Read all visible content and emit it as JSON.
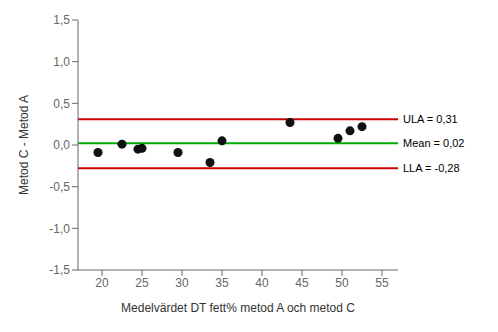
{
  "chart_data": {
    "type": "scatter",
    "x": [
      19.5,
      22.5,
      24.5,
      25.0,
      29.5,
      33.5,
      35.0,
      43.5,
      49.5,
      51.0,
      52.5
    ],
    "values": [
      -0.09,
      0.01,
      -0.05,
      -0.04,
      -0.09,
      -0.21,
      0.05,
      0.27,
      0.08,
      0.17,
      0.22
    ],
    "color": "#111111",
    "xlabel": "Medelvärdet DT fett% metod A och metod C",
    "ylabel": "Metod C - Metod A",
    "xlim": [
      17,
      57
    ],
    "ylim": [
      -1.5,
      1.5
    ],
    "xticks": [
      20,
      25,
      30,
      35,
      40,
      45,
      50,
      55
    ],
    "yticks": [
      {
        "value": -1.5,
        "label": "-1,5"
      },
      {
        "value": -1.0,
        "label": "-1,0"
      },
      {
        "value": -0.5,
        "label": "-0,5"
      },
      {
        "value": 0.0,
        "label": "0,0"
      },
      {
        "value": 0.5,
        "label": "0,5"
      },
      {
        "value": 1.0,
        "label": "1,0"
      },
      {
        "value": 1.5,
        "label": "1,5"
      }
    ],
    "hlines": [
      {
        "value": 0.02,
        "label": "Mean = 0,02",
        "color": "#00aa00"
      },
      {
        "value": 0.31,
        "label": "ULA = 0,31",
        "color": "#cc0000"
      },
      {
        "value": -0.28,
        "label": "LLA = -0,28",
        "color": "#cc0000"
      }
    ],
    "grid": false
  }
}
